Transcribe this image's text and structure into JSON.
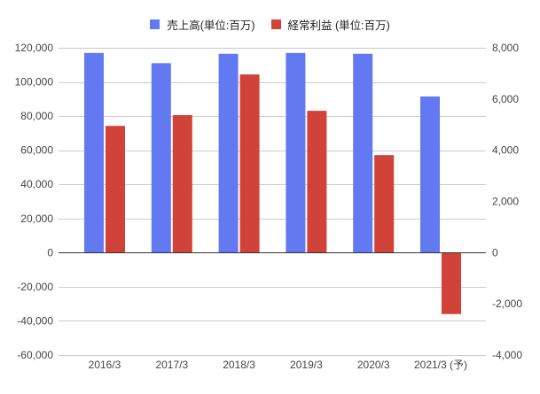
{
  "chart_data": {
    "type": "bar",
    "categories": [
      "2016/3",
      "2017/3",
      "2018/3",
      "2019/3",
      "2020/3",
      "2021/3 (予)"
    ],
    "series": [
      {
        "name": "売上高(単位:百万)",
        "axis": "left",
        "color": "#6379F2",
        "values": [
          117000,
          111000,
          116500,
          117000,
          116500,
          91500
        ]
      },
      {
        "name": "経常利益 (単位:百万)",
        "axis": "right",
        "color": "#D14338",
        "values": [
          4950,
          5370,
          6960,
          5540,
          3810,
          -2400
        ]
      }
    ],
    "y_left": {
      "min": -60000,
      "max": 120000,
      "ticks": [
        120000,
        100000,
        80000,
        60000,
        40000,
        20000,
        0,
        -20000,
        -40000,
        -60000
      ],
      "tick_labels": [
        "120,000",
        "100,000",
        "80,000",
        "60,000",
        "40,000",
        "20,000",
        "0",
        "-20,000",
        "-40,000",
        "-60,000"
      ]
    },
    "y_right": {
      "min": -4000,
      "max": 8000,
      "ticks": [
        8000,
        6000,
        4000,
        2000,
        0,
        -2000,
        -4000
      ],
      "tick_labels": [
        "8,000",
        "6,000",
        "4,000",
        "2,000",
        "0",
        "-2,000",
        "-4,000"
      ]
    },
    "legend": "top",
    "grid": true,
    "colors": {
      "grid": "#CCCCCC",
      "baseline": "#333333",
      "tick_text": "#444444"
    }
  }
}
